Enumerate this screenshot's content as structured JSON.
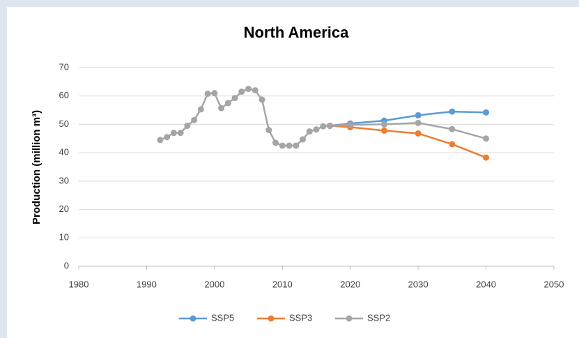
{
  "chart_data": {
    "type": "line",
    "title": "North America",
    "y_label": "Production (million m³)",
    "x": [
      1992,
      1993,
      1994,
      1995,
      1996,
      1997,
      1998,
      1999,
      2000,
      2001,
      2002,
      2003,
      2004,
      2005,
      2006,
      2007,
      2008,
      2009,
      2010,
      2011,
      2012,
      2013,
      2014,
      2015,
      2016,
      2017,
      2020,
      2025,
      2030,
      2035,
      2040
    ],
    "series": [
      {
        "name": "SSP5",
        "color": "#5b9bd5",
        "values": [
          null,
          null,
          null,
          null,
          null,
          null,
          null,
          null,
          null,
          null,
          null,
          null,
          null,
          null,
          null,
          null,
          null,
          null,
          null,
          null,
          null,
          null,
          null,
          null,
          null,
          49.5,
          50.3,
          51.3,
          53.2,
          54.5,
          54.2
        ]
      },
      {
        "name": "SSP3",
        "color": "#ed7d31",
        "values": [
          null,
          null,
          null,
          null,
          null,
          null,
          null,
          null,
          null,
          null,
          null,
          null,
          null,
          null,
          null,
          null,
          null,
          null,
          null,
          null,
          null,
          null,
          null,
          null,
          null,
          49.5,
          49,
          47.8,
          46.8,
          43,
          38.3
        ]
      },
      {
        "name": "SSP2",
        "color": "#a5a5a5",
        "values": [
          44.5,
          45.5,
          47,
          47,
          49.5,
          51.5,
          55.3,
          60.8,
          61,
          55.7,
          57.5,
          59.3,
          61.5,
          62.5,
          62,
          58.7,
          48,
          43.5,
          42.5,
          42.5,
          42.5,
          44.7,
          47.5,
          48.2,
          49.3,
          49.5,
          49.8,
          50,
          50.5,
          48.3,
          45
        ]
      }
    ],
    "xlim": [
      1980,
      2050
    ],
    "xticks": [
      1980,
      1990,
      2000,
      2010,
      2020,
      2030,
      2040,
      2050
    ],
    "ylim": [
      0,
      70
    ],
    "yticks": [
      0,
      10,
      20,
      30,
      40,
      50,
      60,
      70
    ],
    "grid": true,
    "legend": "bottom"
  }
}
